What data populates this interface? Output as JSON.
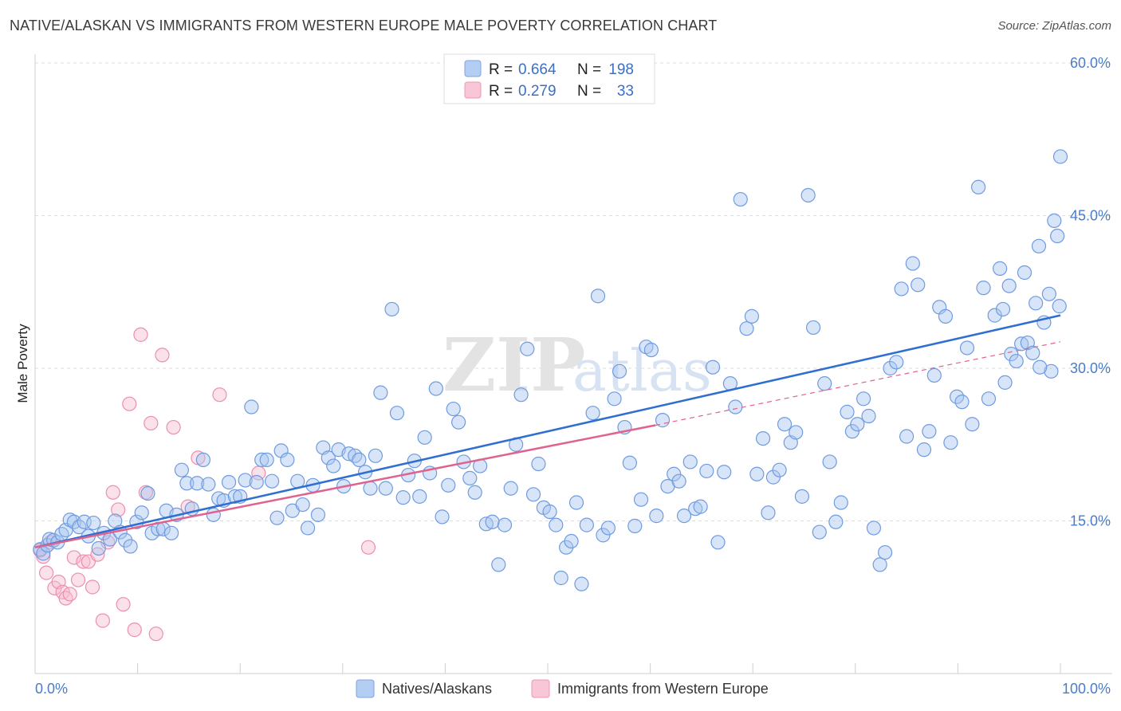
{
  "header": {
    "title": "NATIVE/ALASKAN VS IMMIGRANTS FROM WESTERN EUROPE MALE POVERTY CORRELATION CHART",
    "source": "Source: ZipAtlas.com"
  },
  "watermark": {
    "zip": "ZIP",
    "atlas": "atlas"
  },
  "colors": {
    "blue_fill": "#a9c6f0",
    "blue_stroke": "#6f9be0",
    "blue_line": "#2f6fd0",
    "pink_fill": "#f6bdd0",
    "pink_stroke": "#ec8fae",
    "pink_line": "#e0628e",
    "grid": "#dddddd",
    "tick_text": "#4a7cc9"
  },
  "legend": {
    "r_label": "R =",
    "n_label": "N =",
    "entries": [
      {
        "r": "0.664",
        "n": "198"
      },
      {
        "r": "0.279",
        "n": "33"
      }
    ]
  },
  "chart_data": {
    "type": "scatter",
    "title": "NATIVE/ALASKAN VS IMMIGRANTS FROM WESTERN EUROPE MALE POVERTY CORRELATION CHART",
    "xlabel": "",
    "ylabel": "Male Poverty",
    "xlim": [
      0,
      100
    ],
    "ylim": [
      0,
      60
    ],
    "x_tick_labels": [
      "0.0%",
      "100.0%"
    ],
    "y_ticks": [
      15,
      30,
      45,
      60
    ],
    "y_tick_labels": [
      "15.0%",
      "30.0%",
      "45.0%",
      "60.0%"
    ],
    "grid": true,
    "series": [
      {
        "name": "Natives/Alaskans",
        "r": 0.664,
        "n": 198,
        "trend": {
          "x": [
            0,
            100
          ],
          "y": [
            12.4,
            35.2
          ]
        },
        "points": [
          [
            0.5,
            12.2
          ],
          [
            0.8,
            11.8
          ],
          [
            1.2,
            12.6
          ],
          [
            1.4,
            13.2
          ],
          [
            1.8,
            13.1
          ],
          [
            2.2,
            12.9
          ],
          [
            2.6,
            13.7
          ],
          [
            3.0,
            14.1
          ],
          [
            3.4,
            15.1
          ],
          [
            3.8,
            14.9
          ],
          [
            4.3,
            14.4
          ],
          [
            4.8,
            14.9
          ],
          [
            5.2,
            13.5
          ],
          [
            5.7,
            14.8
          ],
          [
            6.2,
            12.3
          ],
          [
            6.7,
            13.8
          ],
          [
            7.3,
            13.2
          ],
          [
            7.8,
            15.0
          ],
          [
            8.3,
            13.9
          ],
          [
            8.8,
            13.1
          ],
          [
            9.3,
            12.5
          ],
          [
            9.9,
            14.9
          ],
          [
            10.4,
            15.8
          ],
          [
            11.0,
            17.7
          ],
          [
            11.4,
            13.8
          ],
          [
            12.0,
            14.2
          ],
          [
            12.5,
            14.2
          ],
          [
            12.8,
            16.0
          ],
          [
            13.3,
            13.8
          ],
          [
            13.8,
            15.6
          ],
          [
            14.3,
            20.0
          ],
          [
            14.8,
            18.7
          ],
          [
            15.3,
            16.2
          ],
          [
            15.8,
            18.7
          ],
          [
            16.4,
            21.0
          ],
          [
            16.9,
            18.6
          ],
          [
            17.4,
            15.6
          ],
          [
            17.9,
            17.2
          ],
          [
            18.4,
            17.0
          ],
          [
            18.9,
            18.8
          ],
          [
            19.5,
            17.4
          ],
          [
            20.0,
            17.4
          ],
          [
            20.5,
            19.0
          ],
          [
            21.1,
            26.2
          ],
          [
            21.6,
            18.8
          ],
          [
            22.1,
            21.0
          ],
          [
            22.6,
            21.0
          ],
          [
            23.1,
            18.9
          ],
          [
            23.6,
            15.3
          ],
          [
            24.0,
            21.9
          ],
          [
            24.6,
            21.0
          ],
          [
            25.1,
            16.0
          ],
          [
            25.6,
            18.9
          ],
          [
            26.1,
            16.6
          ],
          [
            26.6,
            14.3
          ],
          [
            27.1,
            18.5
          ],
          [
            27.6,
            15.6
          ],
          [
            28.1,
            22.2
          ],
          [
            28.6,
            21.2
          ],
          [
            29.1,
            20.4
          ],
          [
            29.6,
            22.0
          ],
          [
            30.1,
            18.4
          ],
          [
            30.6,
            21.6
          ],
          [
            31.2,
            21.4
          ],
          [
            31.6,
            21.0
          ],
          [
            32.2,
            19.8
          ],
          [
            32.7,
            18.2
          ],
          [
            33.2,
            21.4
          ],
          [
            33.7,
            27.6
          ],
          [
            34.2,
            18.2
          ],
          [
            34.8,
            35.8
          ],
          [
            35.3,
            25.6
          ],
          [
            35.9,
            17.3
          ],
          [
            36.4,
            19.5
          ],
          [
            37.0,
            20.9
          ],
          [
            37.5,
            17.4
          ],
          [
            38.0,
            23.2
          ],
          [
            38.5,
            19.7
          ],
          [
            39.1,
            28.0
          ],
          [
            39.7,
            15.4
          ],
          [
            40.3,
            18.5
          ],
          [
            40.8,
            26.0
          ],
          [
            41.3,
            24.7
          ],
          [
            41.8,
            20.8
          ],
          [
            42.4,
            19.2
          ],
          [
            42.9,
            17.8
          ],
          [
            43.4,
            20.4
          ],
          [
            44.0,
            14.7
          ],
          [
            44.6,
            14.9
          ],
          [
            45.2,
            10.7
          ],
          [
            45.8,
            14.6
          ],
          [
            46.4,
            18.2
          ],
          [
            46.9,
            22.5
          ],
          [
            47.4,
            27.4
          ],
          [
            48.0,
            31.9
          ],
          [
            48.6,
            17.6
          ],
          [
            49.1,
            20.6
          ],
          [
            49.6,
            16.3
          ],
          [
            50.2,
            15.9
          ],
          [
            50.8,
            14.6
          ],
          [
            51.3,
            9.4
          ],
          [
            51.8,
            12.4
          ],
          [
            52.3,
            13.0
          ],
          [
            52.8,
            16.8
          ],
          [
            53.3,
            8.8
          ],
          [
            53.8,
            14.6
          ],
          [
            54.4,
            25.6
          ],
          [
            54.9,
            37.1
          ],
          [
            55.4,
            13.6
          ],
          [
            55.9,
            14.3
          ],
          [
            56.5,
            27.0
          ],
          [
            57.0,
            29.7
          ],
          [
            57.5,
            24.2
          ],
          [
            58.0,
            20.7
          ],
          [
            58.5,
            14.5
          ],
          [
            59.1,
            17.1
          ],
          [
            59.6,
            32.1
          ],
          [
            60.1,
            31.8
          ],
          [
            60.6,
            15.5
          ],
          [
            61.2,
            24.9
          ],
          [
            61.7,
            18.4
          ],
          [
            62.3,
            19.6
          ],
          [
            62.8,
            18.9
          ],
          [
            63.3,
            15.5
          ],
          [
            63.9,
            20.8
          ],
          [
            64.4,
            16.2
          ],
          [
            64.9,
            16.4
          ],
          [
            65.5,
            19.9
          ],
          [
            66.1,
            30.1
          ],
          [
            66.6,
            12.9
          ],
          [
            67.2,
            19.8
          ],
          [
            67.8,
            28.5
          ],
          [
            68.3,
            26.2
          ],
          [
            68.8,
            46.6
          ],
          [
            69.4,
            33.9
          ],
          [
            69.9,
            35.1
          ],
          [
            70.4,
            19.6
          ],
          [
            71.0,
            23.1
          ],
          [
            71.5,
            15.8
          ],
          [
            72.0,
            19.3
          ],
          [
            72.6,
            20.0
          ],
          [
            73.1,
            24.5
          ],
          [
            73.7,
            22.7
          ],
          [
            74.2,
            23.7
          ],
          [
            74.8,
            17.4
          ],
          [
            75.4,
            47.0
          ],
          [
            75.9,
            34.0
          ],
          [
            76.5,
            13.9
          ],
          [
            77.0,
            28.5
          ],
          [
            77.5,
            20.8
          ],
          [
            78.1,
            14.9
          ],
          [
            78.6,
            16.8
          ],
          [
            79.2,
            25.7
          ],
          [
            79.7,
            23.8
          ],
          [
            80.2,
            24.5
          ],
          [
            80.8,
            27.0
          ],
          [
            81.3,
            25.3
          ],
          [
            81.8,
            14.3
          ],
          [
            82.4,
            10.7
          ],
          [
            82.9,
            11.9
          ],
          [
            83.4,
            30.0
          ],
          [
            84.0,
            30.6
          ],
          [
            84.5,
            37.8
          ],
          [
            85.0,
            23.3
          ],
          [
            85.6,
            40.3
          ],
          [
            86.1,
            38.2
          ],
          [
            86.7,
            22.0
          ],
          [
            87.2,
            23.8
          ],
          [
            87.7,
            29.3
          ],
          [
            88.2,
            36.0
          ],
          [
            88.8,
            35.1
          ],
          [
            89.3,
            22.7
          ],
          [
            89.9,
            27.2
          ],
          [
            90.4,
            26.7
          ],
          [
            90.9,
            32.0
          ],
          [
            91.4,
            24.5
          ],
          [
            92.0,
            47.8
          ],
          [
            92.5,
            37.9
          ],
          [
            93.0,
            27.0
          ],
          [
            93.6,
            35.2
          ],
          [
            94.1,
            39.8
          ],
          [
            94.6,
            28.6
          ],
          [
            95.2,
            31.4
          ],
          [
            95.7,
            30.7
          ],
          [
            96.2,
            32.4
          ],
          [
            96.8,
            32.5
          ],
          [
            97.3,
            31.5
          ],
          [
            97.9,
            42.0
          ],
          [
            98.4,
            34.5
          ],
          [
            98.9,
            37.3
          ],
          [
            99.4,
            44.5
          ],
          [
            99.7,
            43.0
          ],
          [
            100.0,
            50.8
          ],
          [
            99.9,
            36.1
          ],
          [
            99.1,
            29.7
          ],
          [
            98.0,
            30.1
          ],
          [
            97.6,
            36.4
          ],
          [
            96.5,
            39.4
          ],
          [
            95.0,
            38.1
          ],
          [
            94.4,
            35.8
          ]
        ]
      },
      {
        "name": "Immigrants from Western Europe",
        "r": 0.279,
        "n": 33,
        "trend": {
          "x": [
            0,
            60.5
          ],
          "y": [
            12.4,
            24.4
          ]
        },
        "trend_extended": {
          "x": [
            60.5,
            100
          ],
          "y": [
            24.4,
            32.6
          ]
        },
        "points": [
          [
            0.5,
            12.1
          ],
          [
            0.8,
            11.5
          ],
          [
            1.1,
            9.9
          ],
          [
            1.5,
            12.9
          ],
          [
            1.9,
            8.4
          ],
          [
            2.3,
            9.0
          ],
          [
            2.7,
            8.0
          ],
          [
            3.0,
            7.4
          ],
          [
            3.4,
            7.8
          ],
          [
            3.8,
            11.4
          ],
          [
            4.2,
            9.2
          ],
          [
            4.7,
            11.0
          ],
          [
            5.2,
            11.0
          ],
          [
            5.6,
            8.5
          ],
          [
            6.1,
            11.7
          ],
          [
            6.6,
            5.2
          ],
          [
            7.1,
            12.9
          ],
          [
            7.6,
            17.8
          ],
          [
            8.1,
            16.1
          ],
          [
            8.6,
            6.8
          ],
          [
            9.2,
            26.5
          ],
          [
            9.7,
            4.3
          ],
          [
            10.3,
            33.3
          ],
          [
            10.8,
            17.8
          ],
          [
            11.3,
            24.6
          ],
          [
            11.8,
            3.9
          ],
          [
            12.4,
            31.3
          ],
          [
            13.5,
            24.2
          ],
          [
            14.9,
            16.4
          ],
          [
            15.9,
            21.2
          ],
          [
            18.0,
            27.4
          ],
          [
            21.8,
            19.7
          ],
          [
            32.5,
            12.4
          ]
        ]
      }
    ]
  }
}
